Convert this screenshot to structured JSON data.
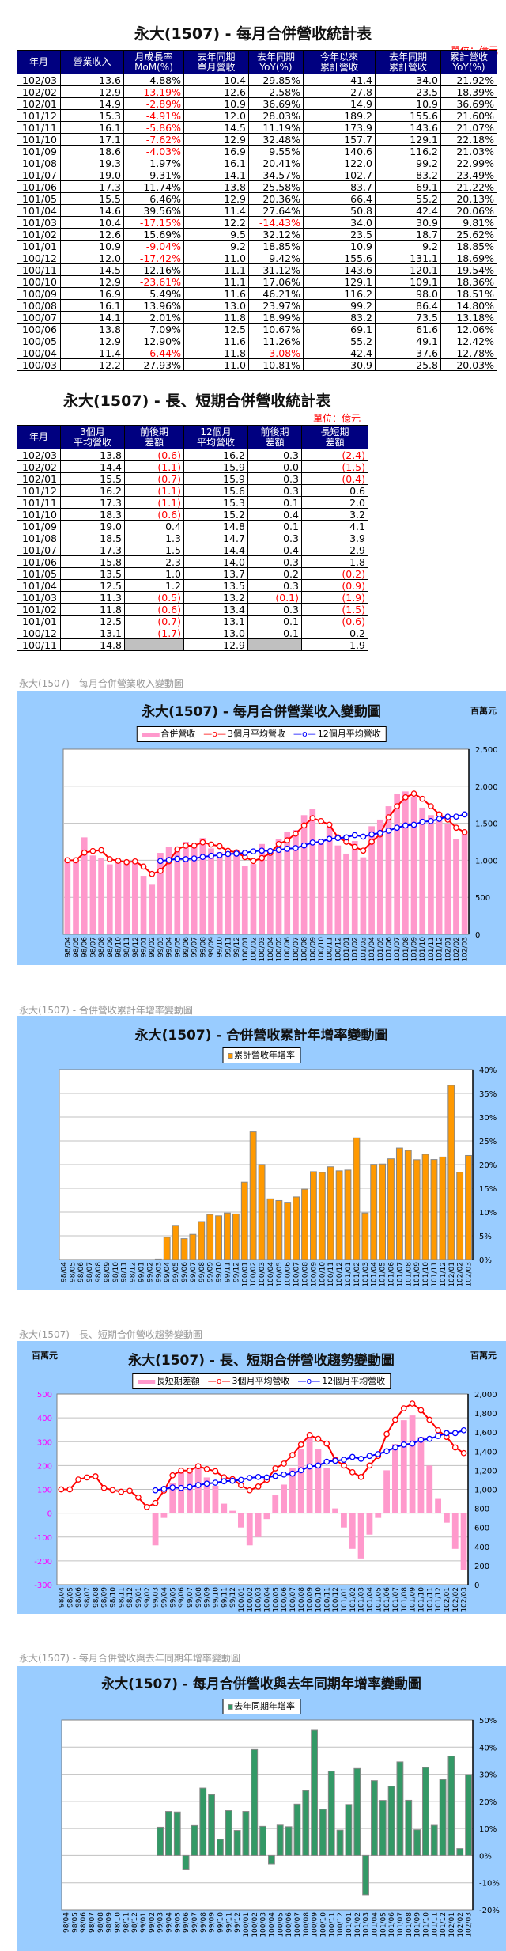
{
  "table1": {
    "title": "永大(1507)  - 每月合併營收統計表",
    "unit": "單位：億元",
    "headers": [
      "年月",
      "營業收入",
      "月成長率\nMoM(%)",
      "去年同期\n單月營收",
      "去年同期\nYoY(%)",
      "今年以來\n累計營收",
      "去年同期\n累計營收",
      "累計營收\nYoY(%)"
    ],
    "rows": [
      [
        "102/03",
        "13.6",
        "4.88%",
        "10.4",
        "29.85%",
        "41.4",
        "34.0",
        "21.92%"
      ],
      [
        "102/02",
        "12.9",
        "-13.19%",
        "12.6",
        "2.58%",
        "27.8",
        "23.5",
        "18.39%"
      ],
      [
        "102/01",
        "14.9",
        "-2.89%",
        "10.9",
        "36.69%",
        "14.9",
        "10.9",
        "36.69%"
      ],
      [
        "101/12",
        "15.3",
        "-4.91%",
        "12.0",
        "28.03%",
        "189.2",
        "155.6",
        "21.60%"
      ],
      [
        "101/11",
        "16.1",
        "-5.86%",
        "14.5",
        "11.19%",
        "173.9",
        "143.6",
        "21.07%"
      ],
      [
        "101/10",
        "17.1",
        "-7.62%",
        "12.9",
        "32.48%",
        "157.7",
        "129.1",
        "22.18%"
      ],
      [
        "101/09",
        "18.6",
        "-4.03%",
        "16.9",
        "9.55%",
        "140.6",
        "116.2",
        "21.03%"
      ],
      [
        "101/08",
        "19.3",
        "1.97%",
        "16.1",
        "20.41%",
        "122.0",
        "99.2",
        "22.99%"
      ],
      [
        "101/07",
        "19.0",
        "9.31%",
        "14.1",
        "34.57%",
        "102.7",
        "83.2",
        "23.49%"
      ],
      [
        "101/06",
        "17.3",
        "11.74%",
        "13.8",
        "25.58%",
        "83.7",
        "69.1",
        "21.22%"
      ],
      [
        "101/05",
        "15.5",
        "6.46%",
        "12.9",
        "20.36%",
        "66.4",
        "55.2",
        "20.13%"
      ],
      [
        "101/04",
        "14.6",
        "39.56%",
        "11.4",
        "27.64%",
        "50.8",
        "42.4",
        "20.06%"
      ],
      [
        "101/03",
        "10.4",
        "-17.15%",
        "12.2",
        "-14.43%",
        "34.0",
        "30.9",
        "9.81%"
      ],
      [
        "101/02",
        "12.6",
        "15.69%",
        "9.5",
        "32.12%",
        "23.5",
        "18.7",
        "25.62%"
      ],
      [
        "101/01",
        "10.9",
        "-9.04%",
        "9.2",
        "18.85%",
        "10.9",
        "9.2",
        "18.85%"
      ],
      [
        "100/12",
        "12.0",
        "-17.42%",
        "11.0",
        "9.42%",
        "155.6",
        "131.1",
        "18.69%"
      ],
      [
        "100/11",
        "14.5",
        "12.16%",
        "11.1",
        "31.12%",
        "143.6",
        "120.1",
        "19.54%"
      ],
      [
        "100/10",
        "12.9",
        "-23.61%",
        "11.1",
        "17.06%",
        "129.1",
        "109.1",
        "18.36%"
      ],
      [
        "100/09",
        "16.9",
        "5.49%",
        "11.6",
        "46.21%",
        "116.2",
        "98.0",
        "18.51%"
      ],
      [
        "100/08",
        "16.1",
        "13.96%",
        "13.0",
        "23.97%",
        "99.2",
        "86.4",
        "14.80%"
      ],
      [
        "100/07",
        "14.1",
        "2.01%",
        "11.8",
        "18.99%",
        "83.2",
        "73.5",
        "13.18%"
      ],
      [
        "100/06",
        "13.8",
        "7.09%",
        "12.5",
        "10.67%",
        "69.1",
        "61.6",
        "12.06%"
      ],
      [
        "100/05",
        "12.9",
        "12.90%",
        "11.6",
        "11.26%",
        "55.2",
        "49.1",
        "12.42%"
      ],
      [
        "100/04",
        "11.4",
        "-6.44%",
        "11.8",
        "-3.08%",
        "42.4",
        "37.6",
        "12.78%"
      ],
      [
        "100/03",
        "12.2",
        "27.93%",
        "11.0",
        "10.81%",
        "30.9",
        "25.8",
        "20.03%"
      ]
    ]
  },
  "table2": {
    "title": "永大(1507)  - 長、短期合併營收統計表",
    "unit": "單位：億元",
    "headers": [
      "年月",
      "3個月\n平均營收",
      "前後期\n差額",
      "12個月\n平均營收",
      "前後期\n差額",
      "長短期\n差額"
    ],
    "rows": [
      [
        "102/03",
        "13.8",
        "(0.6)",
        "16.2",
        "0.3",
        "(2.4)"
      ],
      [
        "102/02",
        "14.4",
        "(1.1)",
        "15.9",
        "0.0",
        "(1.5)"
      ],
      [
        "102/01",
        "15.5",
        "(0.7)",
        "15.9",
        "0.3",
        "(0.4)"
      ],
      [
        "101/12",
        "16.2",
        "(1.1)",
        "15.6",
        "0.3",
        "0.6"
      ],
      [
        "101/11",
        "17.3",
        "(1.1)",
        "15.3",
        "0.1",
        "2.0"
      ],
      [
        "101/10",
        "18.3",
        "(0.6)",
        "15.2",
        "0.4",
        "3.2"
      ],
      [
        "101/09",
        "19.0",
        "0.4",
        "14.8",
        "0.1",
        "4.1"
      ],
      [
        "101/08",
        "18.5",
        "1.3",
        "14.7",
        "0.3",
        "3.9"
      ],
      [
        "101/07",
        "17.3",
        "1.5",
        "14.4",
        "0.4",
        "2.9"
      ],
      [
        "101/06",
        "15.8",
        "2.3",
        "14.0",
        "0.3",
        "1.8"
      ],
      [
        "101/05",
        "13.5",
        "1.0",
        "13.7",
        "0.2",
        "(0.2)"
      ],
      [
        "101/04",
        "12.5",
        "1.2",
        "13.5",
        "0.3",
        "(0.9)"
      ],
      [
        "101/03",
        "11.3",
        "(0.5)",
        "13.2",
        "(0.1)",
        "(1.9)"
      ],
      [
        "101/02",
        "11.8",
        "(0.6)",
        "13.4",
        "0.3",
        "(1.5)"
      ],
      [
        "101/01",
        "12.5",
        "(0.7)",
        "13.1",
        "0.1",
        "(0.6)"
      ],
      [
        "100/12",
        "13.1",
        "(1.7)",
        "13.0",
        "0.1",
        "0.2"
      ],
      [
        "100/11",
        "14.8",
        "",
        "12.9",
        "",
        "1.9"
      ]
    ]
  },
  "chart_data": [
    {
      "type": "bar+line",
      "caption": "永大(1507)  - 每月合併營業收入變動圖",
      "title": "永大(1507)  - 每月合併營業收入變動圖",
      "unit_label": "百萬元",
      "ylim": [
        0,
        2500
      ],
      "y_ticks": [
        "0",
        "500",
        "1,000",
        "1,500",
        "2,000",
        "2,500"
      ],
      "grid": true,
      "legend_position": "top",
      "categories": [
        "98/04",
        "98/05",
        "98/06",
        "98/07",
        "98/08",
        "98/09",
        "98/10",
        "98/11",
        "98/12",
        "99/01",
        "99/02",
        "99/03",
        "99/04",
        "99/05",
        "99/06",
        "99/07",
        "99/08",
        "99/09",
        "99/10",
        "99/11",
        "99/12",
        "100/01",
        "100/02",
        "100/03",
        "100/04",
        "100/05",
        "100/06",
        "100/07",
        "100/08",
        "100/09",
        "100/10",
        "100/11",
        "100/12",
        "101/01",
        "101/02",
        "101/03",
        "101/04",
        "101/05",
        "101/06",
        "101/07",
        "101/08",
        "101/09",
        "101/10",
        "101/11",
        "101/12",
        "102/01",
        "102/02",
        "102/03"
      ],
      "series": [
        {
          "name": "合併營收",
          "kind": "bar",
          "color": "#ff99cc",
          "values": [
            1000,
            1000,
            1310,
            1065,
            1035,
            945,
            1000,
            980,
            975,
            790,
            680,
            1100,
            1180,
            1160,
            1250,
            1180,
            1300,
            1160,
            1110,
            1110,
            1100,
            920,
            950,
            1220,
            1140,
            1290,
            1380,
            1410,
            1610,
            1690,
            1290,
            1450,
            1200,
            1090,
            1260,
            1040,
            1460,
            1550,
            1730,
            1900,
            1930,
            1860,
            1710,
            1610,
            1530,
            1490,
            1290,
            1360
          ]
        },
        {
          "name": "3個月平均營收",
          "kind": "line",
          "color": "#ff0000",
          "values": [
            1000,
            1000,
            1103,
            1125,
            1137,
            1015,
            993,
            975,
            985,
            915,
            815,
            857,
            987,
            1147,
            1197,
            1197,
            1243,
            1213,
            1190,
            1127,
            1107,
            1043,
            990,
            1030,
            1100,
            1220,
            1270,
            1360,
            1470,
            1570,
            1530,
            1480,
            1310,
            1250,
            1180,
            1130,
            1250,
            1350,
            1580,
            1730,
            1850,
            1900,
            1830,
            1730,
            1620,
            1550,
            1440,
            1380
          ]
        },
        {
          "name": "12個月平均營收",
          "kind": "line",
          "color": "#0000ff",
          "values": [
            null,
            null,
            null,
            null,
            null,
            null,
            null,
            null,
            null,
            null,
            null,
            990,
            1005,
            1020,
            1015,
            1025,
            1045,
            1060,
            1070,
            1085,
            1090,
            1100,
            1120,
            1130,
            1125,
            1140,
            1155,
            1165,
            1200,
            1240,
            1250,
            1290,
            1300,
            1310,
            1340,
            1320,
            1350,
            1370,
            1400,
            1440,
            1470,
            1480,
            1520,
            1530,
            1560,
            1590,
            1590,
            1620
          ]
        }
      ]
    },
    {
      "type": "bar",
      "caption": "永大(1507)  -  合併營收累計年增率變動圖",
      "title": "永大(1507)  -  合併營收累計年增率變動圖",
      "ylim": [
        0,
        40
      ],
      "y_ticks": [
        "0%",
        "5%",
        "10%",
        "15%",
        "20%",
        "25%",
        "30%",
        "35%",
        "40%"
      ],
      "grid": true,
      "legend_position": "top",
      "categories": [
        "98/04",
        "98/05",
        "98/06",
        "98/07",
        "98/08",
        "98/09",
        "98/10",
        "98/11",
        "98/12",
        "99/01",
        "99/02",
        "99/03",
        "99/04",
        "99/05",
        "99/06",
        "99/07",
        "99/08",
        "99/09",
        "99/10",
        "99/11",
        "99/12",
        "100/01",
        "100/02",
        "100/03",
        "100/04",
        "100/05",
        "100/06",
        "100/07",
        "100/08",
        "100/09",
        "100/10",
        "100/11",
        "100/12",
        "101/01",
        "101/02",
        "101/03",
        "101/04",
        "101/05",
        "101/06",
        "101/07",
        "101/08",
        "101/09",
        "101/10",
        "101/11",
        "101/12",
        "102/01",
        "102/02",
        "102/03"
      ],
      "series": [
        {
          "name": "累計營收年增率",
          "kind": "bar",
          "color": "#ff9900",
          "values": [
            null,
            null,
            null,
            null,
            null,
            null,
            null,
            null,
            null,
            null,
            null,
            0.1,
            4.7,
            7.2,
            4.4,
            5.3,
            8.0,
            9.5,
            9.2,
            9.8,
            9.6,
            16.3,
            26.9,
            20.03,
            12.78,
            12.42,
            12.06,
            13.18,
            14.8,
            18.51,
            18.36,
            19.54,
            18.69,
            18.85,
            25.62,
            9.81,
            20.06,
            20.13,
            21.22,
            23.49,
            22.99,
            21.03,
            22.18,
            21.07,
            21.6,
            36.69,
            18.39,
            21.92
          ]
        }
      ]
    },
    {
      "type": "bar+line",
      "caption": "永大(1507)  -  長、短期合併營收趨勢變動圖",
      "title": "永大(1507)  -  長、短期合併營收趨勢變動圖",
      "unit_label_left": "百萬元",
      "unit_label_right": "百萬元",
      "ylim_left": [
        -300,
        500
      ],
      "ylim_right": [
        0,
        2000
      ],
      "y_ticks_left": [
        "-300",
        "-200",
        "-100",
        "0",
        "100",
        "200",
        "300",
        "400",
        "500"
      ],
      "y_ticks_right": [
        "0",
        "200",
        "400",
        "600",
        "800",
        "1,000",
        "1,200",
        "1,400",
        "1,600",
        "1,800",
        "2,000"
      ],
      "left_tick_color": "#ff00ff",
      "grid": true,
      "legend_position": "top",
      "categories": [
        "98/04",
        "98/05",
        "98/06",
        "98/07",
        "98/08",
        "98/09",
        "98/10",
        "98/11",
        "98/12",
        "99/01",
        "99/02",
        "99/03",
        "99/04",
        "99/05",
        "99/06",
        "99/07",
        "99/08",
        "99/09",
        "99/10",
        "99/11",
        "99/12",
        "100/01",
        "100/02",
        "100/03",
        "100/04",
        "100/05",
        "100/06",
        "100/07",
        "100/08",
        "100/09",
        "100/10",
        "100/11",
        "100/12",
        "101/01",
        "101/02",
        "101/03",
        "101/04",
        "101/05",
        "101/06",
        "101/07",
        "101/08",
        "101/09",
        "101/10",
        "101/11",
        "101/12",
        "102/01",
        "102/02",
        "102/03"
      ],
      "series": [
        {
          "name": "長短期差額",
          "kind": "bar",
          "axis": "left",
          "color": "#ff99cc",
          "values": [
            null,
            null,
            null,
            null,
            null,
            null,
            null,
            null,
            null,
            null,
            null,
            -135,
            -20,
            125,
            180,
            180,
            195,
            150,
            115,
            40,
            10,
            -60,
            -135,
            -100,
            -25,
            75,
            120,
            190,
            270,
            320,
            270,
            190,
            20,
            -60,
            -150,
            -190,
            -90,
            -20,
            180,
            290,
            390,
            410,
            320,
            200,
            60,
            -40,
            -150,
            -240
          ]
        },
        {
          "name": "3個月平均營收",
          "kind": "line",
          "axis": "right",
          "color": "#ff0000",
          "values": [
            1000,
            1000,
            1103,
            1125,
            1137,
            1015,
            993,
            975,
            985,
            915,
            815,
            857,
            987,
            1147,
            1197,
            1197,
            1243,
            1213,
            1190,
            1127,
            1107,
            1043,
            990,
            1030,
            1100,
            1220,
            1270,
            1360,
            1470,
            1570,
            1530,
            1480,
            1310,
            1250,
            1180,
            1130,
            1250,
            1350,
            1580,
            1730,
            1850,
            1900,
            1830,
            1730,
            1620,
            1550,
            1440,
            1380
          ]
        },
        {
          "name": "12個月平均營收",
          "kind": "line",
          "axis": "right",
          "color": "#0000ff",
          "values": [
            null,
            null,
            null,
            null,
            null,
            null,
            null,
            null,
            null,
            null,
            null,
            990,
            1005,
            1020,
            1015,
            1025,
            1045,
            1060,
            1070,
            1085,
            1090,
            1100,
            1120,
            1130,
            1125,
            1140,
            1155,
            1165,
            1200,
            1240,
            1250,
            1290,
            1300,
            1310,
            1340,
            1320,
            1350,
            1370,
            1400,
            1440,
            1470,
            1480,
            1520,
            1530,
            1560,
            1590,
            1590,
            1620
          ]
        }
      ]
    },
    {
      "type": "bar",
      "caption": "永大(1507)  -  每月合併營收與去年同期年增率變動圖",
      "title": "永大(1507)  -  每月合併營收與去年同期年增率變動圖",
      "ylim": [
        -20,
        50
      ],
      "y_ticks": [
        "-20%",
        "-10%",
        "0%",
        "10%",
        "20%",
        "30%",
        "40%",
        "50%"
      ],
      "grid": true,
      "legend_position": "top",
      "categories": [
        "98/04",
        "98/05",
        "98/06",
        "98/07",
        "98/08",
        "98/09",
        "98/10",
        "98/11",
        "98/12",
        "99/01",
        "99/02",
        "99/03",
        "99/04",
        "99/05",
        "99/06",
        "99/07",
        "99/08",
        "99/09",
        "99/10",
        "99/11",
        "99/12",
        "100/01",
        "100/02",
        "100/03",
        "100/04",
        "100/05",
        "100/06",
        "100/07",
        "100/08",
        "100/09",
        "100/10",
        "100/11",
        "100/12",
        "101/01",
        "101/02",
        "101/03",
        "101/04",
        "101/05",
        "101/06",
        "101/07",
        "101/08",
        "101/09",
        "101/10",
        "101/11",
        "101/12",
        "102/01",
        "102/02",
        "102/03"
      ],
      "series": [
        {
          "name": "去年同期年增率",
          "kind": "bar",
          "color": "#339966",
          "values": [
            null,
            null,
            null,
            null,
            null,
            null,
            null,
            null,
            null,
            null,
            null,
            10.5,
            16.3,
            16.1,
            -5.0,
            11.1,
            24.9,
            22.5,
            6.0,
            16.6,
            9.3,
            16.3,
            39.1,
            10.81,
            -3.08,
            11.26,
            10.67,
            18.99,
            23.97,
            46.21,
            17.06,
            31.12,
            9.42,
            18.85,
            32.12,
            -14.43,
            27.64,
            20.36,
            25.58,
            34.57,
            20.41,
            9.55,
            32.48,
            11.19,
            28.03,
            36.69,
            2.58,
            29.85
          ]
        }
      ]
    }
  ]
}
